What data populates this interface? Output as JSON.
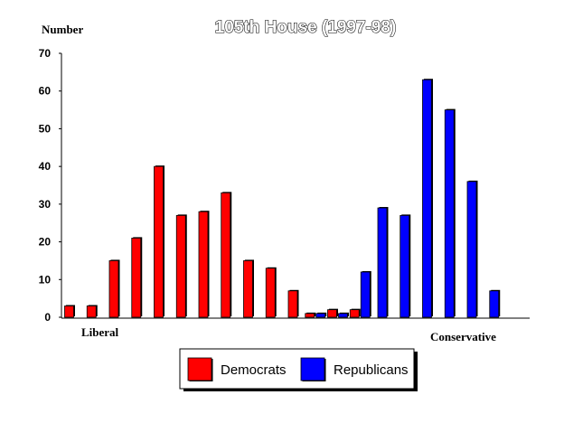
{
  "chart_data": {
    "type": "bar",
    "title": "105th House (1997-98)",
    "ylabel": "Number",
    "xlabel": "",
    "x_start_label": "Liberal",
    "x_end_label": "Conservative",
    "ylim": [
      0,
      70
    ],
    "yticks": [
      0,
      10,
      20,
      30,
      40,
      50,
      60,
      70
    ],
    "grid": false,
    "legend_position": "bottom-center",
    "series": [
      {
        "name": "Democrats",
        "color": "#ff0000",
        "values": [
          3,
          3,
          15,
          21,
          40,
          27,
          28,
          33,
          15,
          13,
          7,
          1,
          2,
          2,
          0,
          0,
          0,
          0,
          0,
          0,
          0
        ]
      },
      {
        "name": "Republicans",
        "color": "#0000ff",
        "values": [
          0,
          0,
          0,
          0,
          0,
          0,
          0,
          0,
          0,
          0,
          0,
          1,
          1,
          12,
          29,
          27,
          63,
          55,
          36,
          7,
          0
        ]
      }
    ]
  }
}
